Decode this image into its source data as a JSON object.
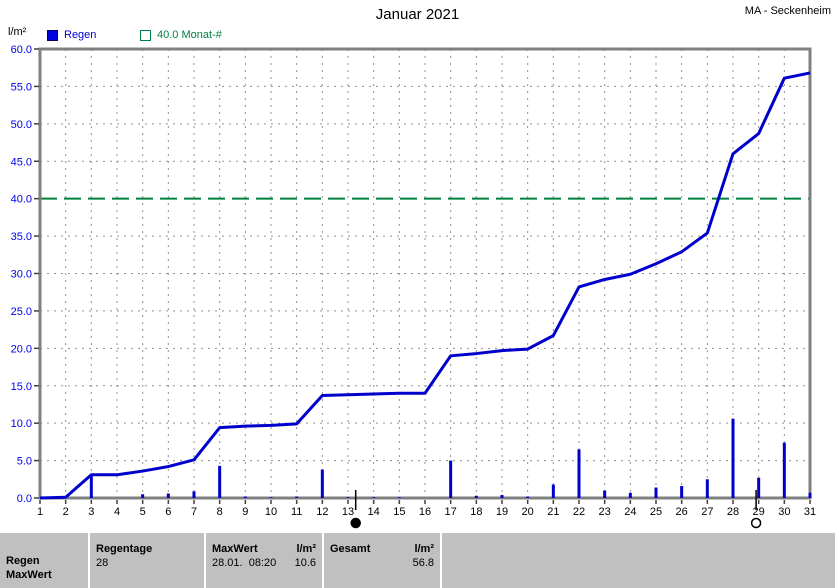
{
  "header": {
    "title": "Januar 2021",
    "station": "MA - Seckenheim",
    "unit_label": "l/m²"
  },
  "legend": {
    "regen": "Regen",
    "threshold": "40.0 Monat-#"
  },
  "colors": {
    "series_blue": "#0000cc",
    "axis_label_blue": "#0000f0",
    "threshold_green": "#008040",
    "grid_gray": "#909090",
    "frame_gray": "#808080",
    "tick_dark": "#404040",
    "table_bg": "#c0c0c0"
  },
  "chart_data": {
    "type": "line",
    "title": "Januar 2021",
    "xlabel": "",
    "ylabel": "l/m²",
    "x": [
      1,
      2,
      3,
      4,
      5,
      6,
      7,
      8,
      9,
      10,
      11,
      12,
      13,
      14,
      15,
      16,
      17,
      18,
      19,
      20,
      21,
      22,
      23,
      24,
      25,
      26,
      27,
      28,
      29,
      30,
      31
    ],
    "ylim": [
      0,
      60
    ],
    "ytick_step": 5,
    "grid": true,
    "threshold": {
      "value": 40.0,
      "label": "40.0 Monat-#"
    },
    "series": [
      {
        "name": "Regen",
        "type": "bar",
        "values": [
          0.0,
          0.1,
          3.0,
          0.0,
          0.5,
          0.6,
          0.9,
          4.3,
          0.2,
          0.1,
          0.2,
          3.8,
          0.1,
          0.1,
          0.1,
          0.0,
          5.0,
          0.3,
          0.4,
          0.2,
          1.8,
          6.5,
          1.0,
          0.7,
          1.4,
          1.6,
          2.5,
          10.6,
          2.7,
          7.4,
          0.7
        ]
      },
      {
        "name": "Regen (Summe)",
        "type": "line",
        "values": [
          0.0,
          0.1,
          3.1,
          3.1,
          3.6,
          4.2,
          5.1,
          9.4,
          9.6,
          9.7,
          9.9,
          13.7,
          13.8,
          13.9,
          14.0,
          14.0,
          19.0,
          19.3,
          19.7,
          19.9,
          21.7,
          28.2,
          29.2,
          29.9,
          31.3,
          32.9,
          35.4,
          46.0,
          48.7,
          56.1,
          56.8
        ]
      }
    ],
    "moon_markers": [
      {
        "day": 13.3,
        "phase": "new-moon"
      },
      {
        "day": 28.9,
        "phase": "full-moon"
      }
    ]
  },
  "table": {
    "row_label_1": "Regen",
    "row_label_2": "MaxWert",
    "regentage": {
      "header": "Regentage",
      "value": "28"
    },
    "maxwert": {
      "header": "MaxWert",
      "unit": "l/m²",
      "date": "28.01.  08:20",
      "value": "10.6"
    },
    "gesamt": {
      "header": "Gesamt",
      "unit": "l/m²",
      "value": "56.8"
    }
  }
}
